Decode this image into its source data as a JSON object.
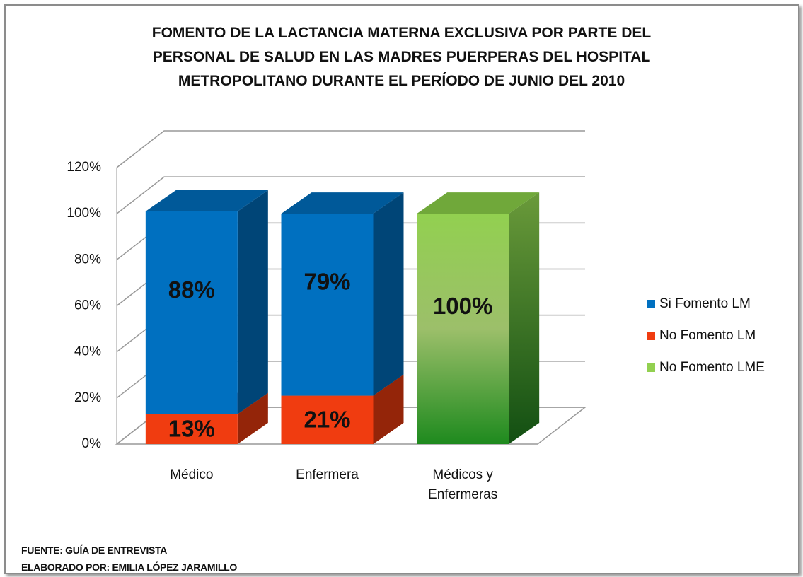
{
  "chart_data": {
    "type": "bar",
    "stacked": true,
    "title": "FOMENTO DE LA LACTANCIA MATERNA EXCLUSIVA POR PARTE DEL PERSONAL DE SALUD EN LAS MADRES PUERPERAS DEL HOSPITAL METROPOLITANO DURANTE EL PERÍODO DE JUNIO DEL 2010",
    "categories": [
      "Médico",
      "Enfermera",
      "Médicos y Enfermeras"
    ],
    "series": [
      {
        "name": "Si Fomento LM",
        "color": "#0070c0",
        "values": [
          88,
          79,
          null
        ],
        "value_labels": [
          "88%",
          "79%",
          null
        ]
      },
      {
        "name": "No Fomento LM",
        "color": "#f03c10",
        "values": [
          13,
          21,
          null
        ],
        "value_labels": [
          "13%",
          "21%",
          null
        ]
      },
      {
        "name": "No Fomento LME",
        "color": "#92d050",
        "values": [
          null,
          null,
          100
        ],
        "value_labels": [
          null,
          null,
          "100%"
        ]
      }
    ],
    "ylim": [
      0,
      120
    ],
    "yticks": [
      {
        "value": 0,
        "label": "0%"
      },
      {
        "value": 20,
        "label": "20%"
      },
      {
        "value": 40,
        "label": "40%"
      },
      {
        "value": 60,
        "label": "60%"
      },
      {
        "value": 80,
        "label": "80%"
      },
      {
        "value": 100,
        "label": "100%"
      },
      {
        "value": 120,
        "label": "120%"
      }
    ],
    "grid": true,
    "legend": "right",
    "notes": [
      "FUENTE: GUÍA DE ENTREVISTA",
      "ELABORADO POR: EMILIA LÓPEZ JARAMILLO"
    ]
  }
}
